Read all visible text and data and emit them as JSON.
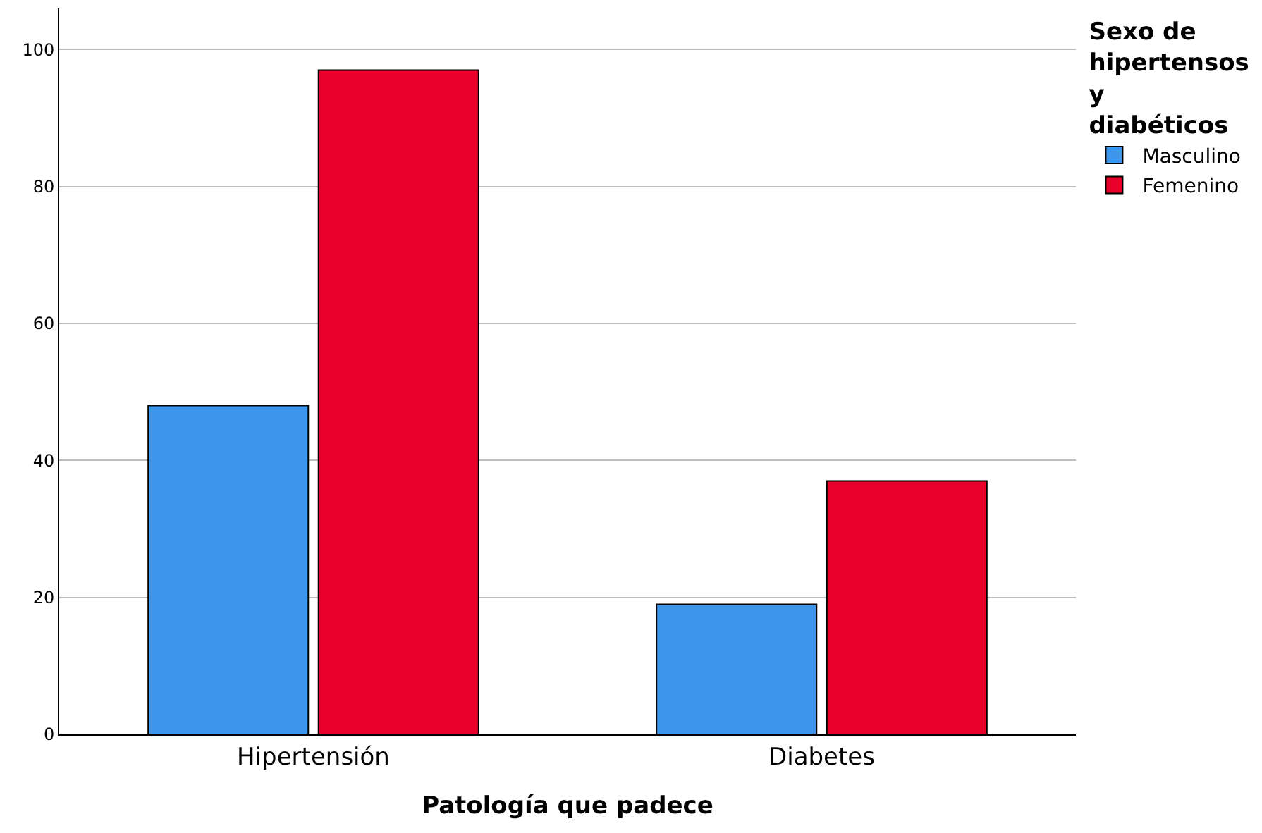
{
  "chart_data": {
    "type": "bar",
    "xlabel": "Patología que padece",
    "legend_title": "Sexo de hipertensos y diabéticos",
    "categories": [
      "Hipertensión",
      "Diabetes"
    ],
    "series": [
      {
        "name": "Masculino",
        "color": "#3e96ea",
        "values": [
          48,
          19
        ]
      },
      {
        "name": "Femenino",
        "color": "#e8002a",
        "values": [
          97,
          37
        ]
      }
    ],
    "ylim": [
      0,
      106
    ],
    "yticks": [
      0,
      20,
      40,
      60,
      80,
      100
    ],
    "grid": "y",
    "legend": "top right"
  }
}
